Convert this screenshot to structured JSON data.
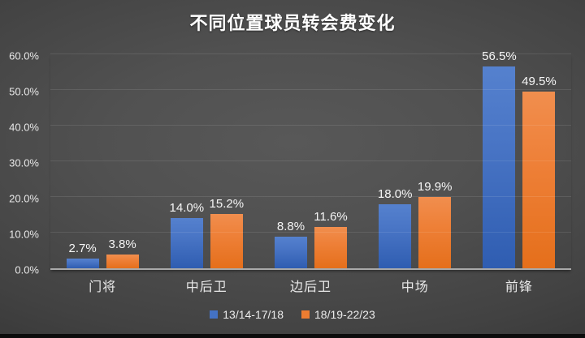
{
  "chart_data": {
    "type": "bar",
    "title": "不同位置球员转会费变化",
    "categories": [
      "门将",
      "中后卫",
      "边后卫",
      "中场",
      "前锋"
    ],
    "series": [
      {
        "name": "13/14-17/18",
        "color": "#4472c4",
        "values": [
          2.7,
          14.0,
          8.8,
          18.0,
          56.5
        ]
      },
      {
        "name": "18/19-22/23",
        "color": "#ed7d31",
        "values": [
          3.8,
          15.2,
          11.6,
          19.9,
          49.5
        ]
      }
    ],
    "value_labels": [
      [
        "2.7%",
        "14.0%",
        "8.8%",
        "18.0%",
        "56.5%"
      ],
      [
        "3.8%",
        "15.2%",
        "11.6%",
        "19.9%",
        "49.5%"
      ]
    ],
    "yticks": [
      "0.0%",
      "10.0%",
      "20.0%",
      "30.0%",
      "40.0%",
      "50.0%",
      "60.0%"
    ],
    "ytick_values": [
      0,
      10,
      20,
      30,
      40,
      50,
      60
    ],
    "ylim": [
      0,
      60
    ],
    "grid": true,
    "legend_position": "bottom"
  },
  "colors": {
    "background_center": "#585858",
    "background_edge": "#2b2b2b",
    "series_blue": "#4472c4",
    "series_orange": "#ed7d31",
    "axis_line": "#a9a9a9",
    "text": "#ffffff"
  }
}
